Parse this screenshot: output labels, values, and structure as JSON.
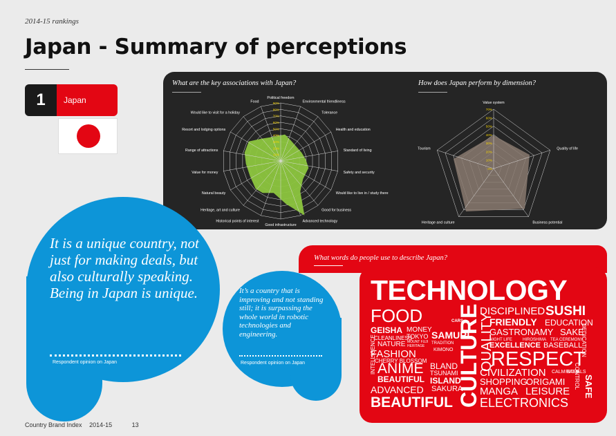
{
  "header": {
    "subtitle": "2014-15 rankings",
    "title": "Japan - Summary of perceptions"
  },
  "rank": {
    "number": "1",
    "country": "Japan"
  },
  "associations": {
    "heading": "What are the key associations with Japan?",
    "attributes": [
      "Political freedom",
      "Environmental friendliness",
      "Tolerance",
      "Health and education",
      "Standard of living",
      "Safety and security",
      "Would like to live in / study there",
      "Good for business",
      "Advanced technology",
      "Good infrastructure",
      "Historical points of interest",
      "Heritage, art and culture",
      "Natural beauty",
      "Value for money",
      "Range of attractions",
      "Resort and lodging options",
      "Would like to visit for a holiday",
      "Food"
    ],
    "ticks": [
      "10%",
      "20%",
      "30%",
      "40%",
      "50%",
      "60%",
      "70%",
      "80%",
      "90%"
    ],
    "color": "#8dc63f"
  },
  "dimensions": {
    "heading": "How does Japan perform by dimension?",
    "axes": [
      "Value system",
      "Quality of life",
      "Business potential",
      "Heritage and culture",
      "Tourism"
    ],
    "ticks": [
      "0%",
      "10%",
      "20%",
      "30%",
      "40%",
      "50%",
      "60%",
      "70%"
    ],
    "color": "#8a7a70"
  },
  "words": {
    "heading": "What words do people use to describe Japan?",
    "list": [
      "TECHNOLOGY",
      "FOOD",
      "DISCIPLINED",
      "SUSHI",
      "FRIENDLY",
      "EDUCATION",
      "GASTRONAMY",
      "SAKE",
      "NIGHT LIFE",
      "HIROSHIMA",
      "TEA CEREMONY",
      "GEISHA",
      "MONEY",
      "CLEANLINESS",
      "TOKYO",
      "NATURE",
      "MOUNT FUJI",
      "HERITAGE",
      "SAMURI",
      "TRADITION",
      "CARS",
      "KIMONO",
      "FASHION",
      "CHERRY BLOSSOM",
      "ANIME",
      "BLAND",
      "TSUNAMI",
      "ISLAND",
      "BEAUTIFUL",
      "ADVANCED",
      "SAKURA",
      "BEAUTIFUL",
      "CULTURE",
      "QUALITY",
      "RESPECT",
      "CIVILIZATION",
      "CALM SAFE",
      "RITUALS",
      "SHOPPING",
      "ORIGAMI",
      "MANGA",
      "LEISURE",
      "ELECTRONICS",
      "INTELLIGENCE",
      "DEDICATION",
      "CONTROL",
      "SAFE",
      "EXCELLENCE",
      "BASEBALL"
    ]
  },
  "quotes": [
    {
      "text": "It is a unique country, not just for making deals, but also culturally speaking. Being in Japan is unique.",
      "source": "Respondent opinion on Japan"
    },
    {
      "text": "It’s a country that is improving and not standing still; it is surpassing the whole world in robotic technologies and engineering.",
      "source": "Respondent opinion on Japan"
    }
  ],
  "footer": {
    "publication": "Country Brand Index",
    "year": "2014-15",
    "page": "13"
  },
  "colors": {
    "red": "#e30613",
    "blue": "#0d95d8",
    "dark": "#252525"
  }
}
